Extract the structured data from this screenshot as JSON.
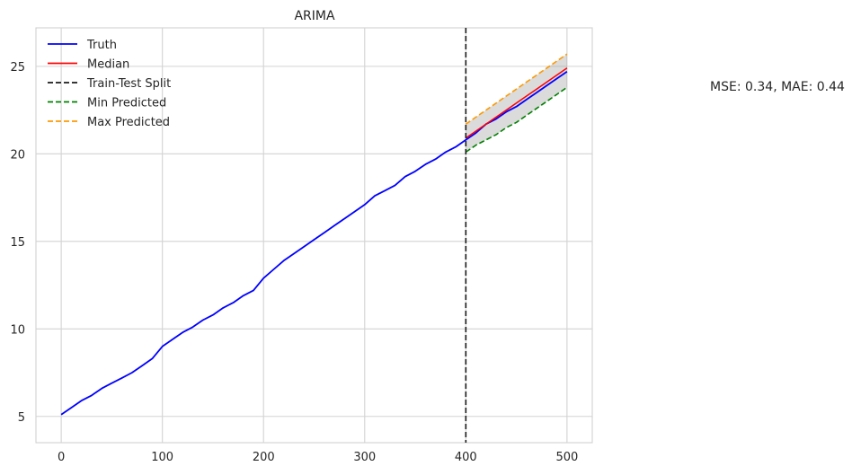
{
  "chart_data": {
    "type": "line",
    "title": "ARIMA",
    "xlabel": "",
    "ylabel": "",
    "xlim": [
      -25,
      525
    ],
    "ylim": [
      3.5,
      27.2
    ],
    "grid": true,
    "legend_position": "top-left",
    "xticks": [
      0,
      100,
      200,
      300,
      400,
      500
    ],
    "yticks": [
      5,
      10,
      15,
      20,
      25
    ],
    "split_x": 400,
    "metrics_text": "MSE: 0.34, MAE: 0.44",
    "legend": [
      {
        "label": "Truth",
        "color": "#0000ff",
        "dashed": false
      },
      {
        "label": "Median",
        "color": "#ff0000",
        "dashed": false
      },
      {
        "label": "Train-Test Split",
        "color": "#1a1a1a",
        "dashed": true
      },
      {
        "label": "Min Predicted",
        "color": "#008000",
        "dashed": true
      },
      {
        "label": "Max Predicted",
        "color": "#ff9900",
        "dashed": true
      }
    ],
    "series": [
      {
        "name": "Truth",
        "color": "#0000ff",
        "x": [
          0,
          10,
          20,
          30,
          40,
          50,
          60,
          70,
          80,
          90,
          100,
          110,
          120,
          130,
          140,
          150,
          160,
          170,
          180,
          190,
          200,
          210,
          220,
          230,
          240,
          250,
          260,
          270,
          280,
          290,
          300,
          310,
          320,
          330,
          340,
          350,
          360,
          370,
          380,
          390,
          400,
          410,
          420,
          430,
          440,
          450,
          460,
          470,
          480,
          490,
          500
        ],
        "y": [
          5.1,
          5.5,
          5.9,
          6.2,
          6.6,
          6.9,
          7.2,
          7.5,
          7.9,
          8.3,
          9.0,
          9.4,
          9.8,
          10.1,
          10.5,
          10.8,
          11.2,
          11.5,
          11.9,
          12.2,
          12.9,
          13.4,
          13.9,
          14.3,
          14.7,
          15.1,
          15.5,
          15.9,
          16.3,
          16.7,
          17.1,
          17.6,
          17.9,
          18.2,
          18.7,
          19.0,
          19.4,
          19.7,
          20.1,
          20.4,
          20.8,
          21.2,
          21.7,
          22.0,
          22.4,
          22.7,
          23.1,
          23.5,
          23.9,
          24.3,
          24.7
        ]
      },
      {
        "name": "Median",
        "color": "#ff0000",
        "x": [
          400,
          410,
          420,
          430,
          440,
          450,
          460,
          470,
          480,
          490,
          500
        ],
        "y": [
          20.9,
          21.3,
          21.7,
          22.1,
          22.5,
          22.9,
          23.3,
          23.7,
          24.1,
          24.5,
          24.9
        ]
      },
      {
        "name": "Min Predicted",
        "color": "#008000",
        "x": [
          400,
          410,
          420,
          430,
          440,
          450,
          460,
          470,
          480,
          490,
          500
        ],
        "y": [
          20.1,
          20.5,
          20.8,
          21.1,
          21.5,
          21.8,
          22.2,
          22.6,
          23.0,
          23.4,
          23.8
        ]
      },
      {
        "name": "Max Predicted",
        "color": "#ff9900",
        "x": [
          400,
          410,
          420,
          430,
          440,
          450,
          460,
          470,
          480,
          490,
          500
        ],
        "y": [
          21.7,
          22.1,
          22.5,
          22.9,
          23.3,
          23.7,
          24.1,
          24.5,
          24.9,
          25.3,
          25.7
        ]
      }
    ]
  }
}
